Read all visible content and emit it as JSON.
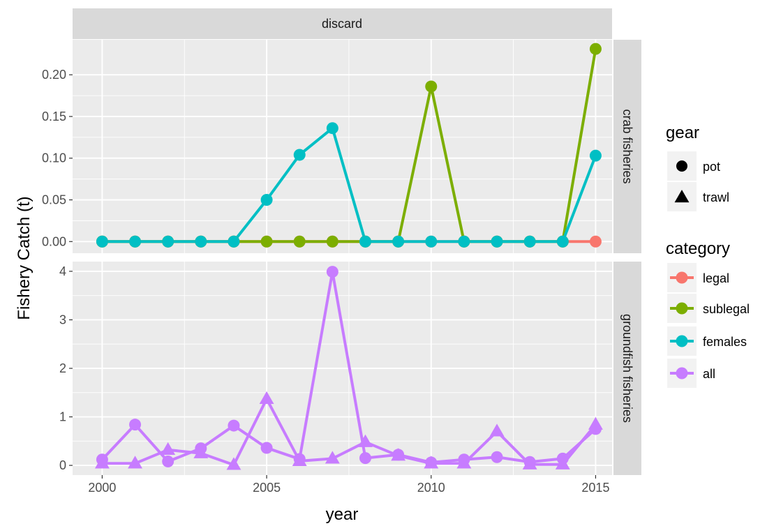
{
  "chart_data": {
    "type": "line",
    "facet_column_label": "discard",
    "xlabel": "year",
    "ylabel": "Fishery Catch (t)",
    "x_ticks": [
      2000,
      2005,
      2010,
      2015
    ],
    "xlim": [
      1999.1,
      2015.5
    ],
    "legend_position": "right",
    "panels": [
      {
        "label": "crab fisheries",
        "ylim": [
          -0.014,
          0.242
        ],
        "y_ticks": [
          0,
          0.05,
          0.1,
          0.15,
          0.2
        ],
        "y_tick_labels": [
          "0.00",
          "0.05",
          "0.10",
          "0.15",
          "0.20"
        ],
        "series": [
          {
            "category": "legal",
            "gear": "pot",
            "x": [
              2000,
              2001,
              2002,
              2003,
              2004,
              2005,
              2006,
              2007,
              2008,
              2009,
              2010,
              2011,
              2012,
              2013,
              2014,
              2015
            ],
            "y": [
              0,
              0,
              0,
              0,
              0,
              0,
              0,
              0,
              0,
              0,
              0,
              0,
              0,
              0,
              0,
              0
            ]
          },
          {
            "category": "sublegal",
            "gear": "pot",
            "x": [
              2000,
              2001,
              2002,
              2003,
              2004,
              2005,
              2006,
              2007,
              2008,
              2009,
              2010,
              2011,
              2012,
              2013,
              2014,
              2015
            ],
            "y": [
              0,
              0,
              0,
              0,
              0,
              0,
              0,
              0,
              0,
              0,
              0.186,
              0,
              0,
              0,
              0,
              0.231
            ]
          },
          {
            "category": "females",
            "gear": "pot",
            "x": [
              2000,
              2001,
              2002,
              2003,
              2004,
              2005,
              2006,
              2007,
              2008,
              2009,
              2010,
              2011,
              2012,
              2013,
              2014,
              2015
            ],
            "y": [
              0,
              0,
              0,
              0,
              0,
              0.05,
              0.104,
              0.136,
              0,
              0,
              0,
              0,
              0,
              0,
              0,
              0.103
            ]
          }
        ]
      },
      {
        "label": "groundfish fisheries",
        "ylim": [
          -0.2,
          4.2
        ],
        "y_ticks": [
          0,
          1,
          2,
          3,
          4
        ],
        "y_tick_labels": [
          "0",
          "1",
          "2",
          "3",
          "4"
        ],
        "series": [
          {
            "category": "all",
            "gear": "pot",
            "x": [
              2000,
              2001,
              2002,
              2003,
              2004,
              2005,
              2006,
              2007,
              2008,
              2009,
              2010,
              2011,
              2012,
              2013,
              2014,
              2015
            ],
            "y": [
              0.12,
              0.84,
              0.08,
              0.35,
              0.82,
              0.36,
              0.13,
              3.99,
              0.15,
              0.22,
              0.06,
              0.12,
              0.17,
              0.07,
              0.14,
              0.75
            ]
          },
          {
            "category": "all",
            "gear": "trawl",
            "x": [
              2000,
              2001,
              2002,
              2003,
              2004,
              2005,
              2006,
              2007,
              2008,
              2009,
              2010,
              2011,
              2012,
              2013,
              2014,
              2015
            ],
            "y": [
              0.04,
              0.04,
              0.32,
              0.25,
              0.01,
              1.37,
              0.09,
              0.14,
              0.48,
              0.2,
              0.04,
              0.04,
              0.7,
              0.02,
              0.02,
              0.84
            ]
          }
        ]
      }
    ],
    "legend": {
      "gear": {
        "title": "gear",
        "items": [
          {
            "label": "pot",
            "shape": "circle"
          },
          {
            "label": "trawl",
            "shape": "triangle"
          }
        ]
      },
      "category": {
        "title": "category",
        "items": [
          {
            "label": "legal",
            "color": "#F8766D"
          },
          {
            "label": "sublegal",
            "color": "#7CAE00"
          },
          {
            "label": "females",
            "color": "#00BFC4"
          },
          {
            "label": "all",
            "color": "#C77CFF"
          }
        ]
      }
    }
  }
}
